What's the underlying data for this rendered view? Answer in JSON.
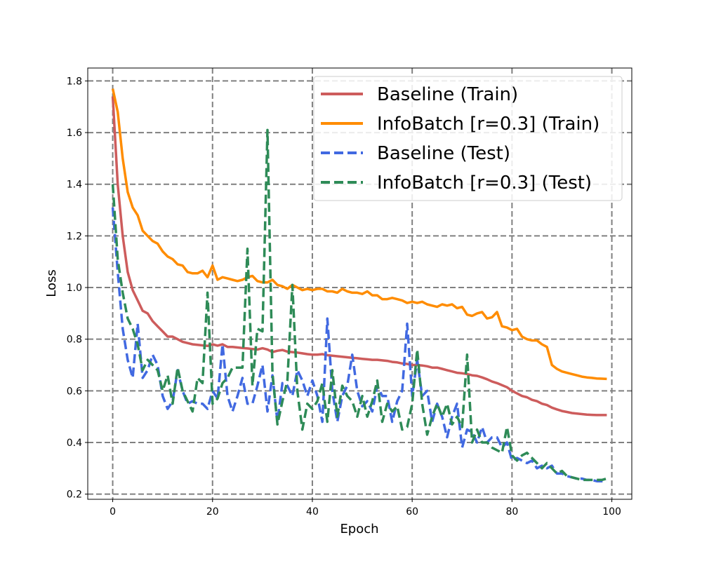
{
  "chart_data": {
    "type": "line",
    "title": "",
    "xlabel": "Epoch",
    "ylabel": "Loss",
    "xlim": [
      -5,
      104
    ],
    "ylim": [
      0.18,
      1.85
    ],
    "xticks": [
      0,
      20,
      40,
      60,
      80,
      100
    ],
    "yticks": [
      0.2,
      0.4,
      0.6,
      0.8,
      1.0,
      1.2,
      1.4,
      1.6,
      1.8
    ],
    "grid": true,
    "legend_position": "top-right",
    "series": [
      {
        "name": "Baseline (Train)",
        "color": "#cd5c5c",
        "style": "solid",
        "x": [
          0,
          1,
          2,
          3,
          4,
          5,
          6,
          7,
          8,
          9,
          10,
          11,
          12,
          13,
          14,
          15,
          16,
          17,
          18,
          19,
          20,
          21,
          22,
          23,
          24,
          25,
          26,
          27,
          28,
          29,
          30,
          31,
          32,
          33,
          34,
          35,
          36,
          37,
          38,
          39,
          40,
          41,
          42,
          43,
          44,
          45,
          46,
          47,
          48,
          49,
          50,
          51,
          52,
          53,
          54,
          55,
          56,
          57,
          58,
          59,
          60,
          61,
          62,
          63,
          64,
          65,
          66,
          67,
          68,
          69,
          70,
          71,
          72,
          73,
          74,
          75,
          76,
          77,
          78,
          79,
          80,
          81,
          82,
          83,
          84,
          85,
          86,
          87,
          88,
          89,
          90,
          91,
          92,
          93,
          94,
          95,
          96,
          97,
          98,
          99
        ],
        "values": [
          1.74,
          1.4,
          1.2,
          1.06,
          0.99,
          0.95,
          0.91,
          0.9,
          0.87,
          0.85,
          0.83,
          0.81,
          0.81,
          0.8,
          0.79,
          0.785,
          0.78,
          0.778,
          0.776,
          0.774,
          0.78,
          0.775,
          0.78,
          0.77,
          0.77,
          0.768,
          0.766,
          0.764,
          0.762,
          0.76,
          0.765,
          0.76,
          0.75,
          0.755,
          0.758,
          0.752,
          0.75,
          0.748,
          0.745,
          0.742,
          0.74,
          0.74,
          0.742,
          0.738,
          0.736,
          0.734,
          0.732,
          0.73,
          0.728,
          0.726,
          0.724,
          0.722,
          0.72,
          0.72,
          0.718,
          0.716,
          0.712,
          0.71,
          0.706,
          0.704,
          0.7,
          0.7,
          0.698,
          0.695,
          0.69,
          0.69,
          0.685,
          0.68,
          0.675,
          0.67,
          0.668,
          0.665,
          0.66,
          0.658,
          0.652,
          0.645,
          0.636,
          0.63,
          0.622,
          0.614,
          0.6,
          0.59,
          0.58,
          0.575,
          0.565,
          0.56,
          0.55,
          0.545,
          0.535,
          0.528,
          0.522,
          0.518,
          0.514,
          0.512,
          0.51,
          0.508,
          0.507,
          0.506,
          0.506,
          0.506
        ]
      },
      {
        "name": "InfoBatch [r=0.3] (Train)",
        "color": "#ff8c00",
        "style": "solid",
        "x": [
          0,
          1,
          2,
          3,
          4,
          5,
          6,
          7,
          8,
          9,
          10,
          11,
          12,
          13,
          14,
          15,
          16,
          17,
          18,
          19,
          20,
          21,
          22,
          23,
          24,
          25,
          26,
          27,
          28,
          29,
          30,
          31,
          32,
          33,
          34,
          35,
          36,
          37,
          38,
          39,
          40,
          41,
          42,
          43,
          44,
          45,
          46,
          47,
          48,
          49,
          50,
          51,
          52,
          53,
          54,
          55,
          56,
          57,
          58,
          59,
          60,
          61,
          62,
          63,
          64,
          65,
          66,
          67,
          68,
          69,
          70,
          71,
          72,
          73,
          74,
          75,
          76,
          77,
          78,
          79,
          80,
          81,
          82,
          83,
          84,
          85,
          86,
          87,
          88,
          89,
          90,
          91,
          92,
          93,
          94,
          95,
          96,
          97,
          98,
          99
        ],
        "values": [
          1.77,
          1.68,
          1.5,
          1.37,
          1.31,
          1.28,
          1.22,
          1.2,
          1.18,
          1.17,
          1.14,
          1.12,
          1.11,
          1.09,
          1.085,
          1.06,
          1.055,
          1.055,
          1.065,
          1.04,
          1.085,
          1.03,
          1.04,
          1.035,
          1.03,
          1.025,
          1.03,
          1.04,
          1.045,
          1.025,
          1.02,
          1.02,
          1.03,
          1.01,
          1.005,
          0.995,
          1.01,
          1.0,
          0.99,
          0.995,
          0.99,
          0.995,
          0.995,
          0.985,
          0.985,
          0.98,
          0.995,
          0.985,
          0.98,
          0.98,
          0.975,
          0.985,
          0.97,
          0.97,
          0.955,
          0.955,
          0.96,
          0.955,
          0.95,
          0.94,
          0.945,
          0.94,
          0.945,
          0.935,
          0.93,
          0.925,
          0.935,
          0.93,
          0.935,
          0.92,
          0.925,
          0.895,
          0.89,
          0.9,
          0.905,
          0.88,
          0.885,
          0.905,
          0.85,
          0.845,
          0.835,
          0.84,
          0.81,
          0.8,
          0.795,
          0.795,
          0.78,
          0.77,
          0.7,
          0.685,
          0.675,
          0.67,
          0.665,
          0.66,
          0.655,
          0.652,
          0.65,
          0.648,
          0.647,
          0.646
        ]
      },
      {
        "name": "Baseline (Test)",
        "color": "#4169e1",
        "style": "dashed",
        "x": [
          0,
          1,
          2,
          3,
          4,
          5,
          6,
          7,
          8,
          9,
          10,
          11,
          12,
          13,
          14,
          15,
          16,
          17,
          18,
          19,
          20,
          21,
          22,
          23,
          24,
          25,
          26,
          27,
          28,
          29,
          30,
          31,
          32,
          33,
          34,
          35,
          36,
          37,
          38,
          39,
          40,
          41,
          42,
          43,
          44,
          45,
          46,
          47,
          48,
          49,
          50,
          51,
          52,
          53,
          54,
          55,
          56,
          57,
          58,
          59,
          60,
          61,
          62,
          63,
          64,
          65,
          66,
          67,
          68,
          69,
          70,
          71,
          72,
          73,
          74,
          75,
          76,
          77,
          78,
          79,
          80,
          81,
          82,
          83,
          84,
          85,
          86,
          87,
          88,
          89,
          90,
          91,
          92,
          93,
          94,
          95,
          96,
          97,
          98,
          99
        ],
        "values": [
          1.31,
          1.06,
          0.84,
          0.72,
          0.65,
          0.86,
          0.65,
          0.68,
          0.74,
          0.7,
          0.58,
          0.53,
          0.56,
          0.68,
          0.6,
          0.55,
          0.56,
          0.55,
          0.55,
          0.53,
          0.6,
          0.57,
          0.78,
          0.58,
          0.52,
          0.58,
          0.65,
          0.55,
          0.55,
          0.62,
          0.7,
          0.52,
          0.66,
          0.48,
          0.63,
          0.62,
          0.58,
          0.68,
          0.64,
          0.58,
          0.64,
          0.58,
          0.48,
          0.88,
          0.6,
          0.48,
          0.58,
          0.62,
          0.74,
          0.6,
          0.54,
          0.56,
          0.52,
          0.62,
          0.58,
          0.58,
          0.48,
          0.56,
          0.6,
          0.86,
          0.58,
          0.72,
          0.58,
          0.6,
          0.48,
          0.55,
          0.5,
          0.42,
          0.5,
          0.55,
          0.38,
          0.45,
          0.44,
          0.4,
          0.46,
          0.4,
          0.42,
          0.42,
          0.38,
          0.4,
          0.33,
          0.34,
          0.33,
          0.32,
          0.33,
          0.3,
          0.31,
          0.3,
          0.31,
          0.28,
          0.28,
          0.27,
          0.265,
          0.26,
          0.26,
          0.255,
          0.255,
          0.25,
          0.25,
          0.25
        ]
      },
      {
        "name": "InfoBatch [r=0.3] (Test)",
        "color": "#2e8b57",
        "style": "dashed",
        "x": [
          0,
          1,
          2,
          3,
          4,
          5,
          6,
          7,
          8,
          9,
          10,
          11,
          12,
          13,
          14,
          15,
          16,
          17,
          18,
          19,
          20,
          21,
          22,
          23,
          24,
          25,
          26,
          27,
          28,
          29,
          30,
          31,
          32,
          33,
          34,
          35,
          36,
          37,
          38,
          39,
          40,
          41,
          42,
          43,
          44,
          45,
          46,
          47,
          48,
          49,
          50,
          51,
          52,
          53,
          54,
          55,
          56,
          57,
          58,
          59,
          60,
          61,
          62,
          63,
          64,
          65,
          66,
          67,
          68,
          69,
          70,
          71,
          72,
          73,
          74,
          75,
          76,
          77,
          78,
          79,
          80,
          81,
          82,
          83,
          84,
          85,
          86,
          87,
          88,
          89,
          90,
          91,
          92,
          93,
          94,
          95,
          96,
          97,
          98,
          99
        ],
        "values": [
          1.4,
          1.11,
          0.98,
          0.88,
          0.84,
          0.78,
          0.68,
          0.72,
          0.7,
          0.68,
          0.6,
          0.66,
          0.55,
          0.69,
          0.6,
          0.56,
          0.52,
          0.65,
          0.63,
          0.98,
          0.55,
          0.57,
          0.63,
          0.65,
          0.69,
          0.69,
          0.69,
          1.15,
          0.62,
          0.84,
          0.83,
          1.61,
          0.67,
          0.47,
          0.56,
          0.64,
          1.01,
          0.6,
          0.45,
          0.55,
          0.53,
          0.56,
          0.63,
          0.48,
          0.68,
          0.5,
          0.62,
          0.58,
          0.56,
          0.5,
          0.58,
          0.5,
          0.56,
          0.64,
          0.48,
          0.55,
          0.52,
          0.54,
          0.45,
          0.46,
          0.55,
          0.76,
          0.55,
          0.43,
          0.5,
          0.55,
          0.5,
          0.55,
          0.47,
          0.5,
          0.46,
          0.74,
          0.4,
          0.45,
          0.4,
          0.4,
          0.38,
          0.37,
          0.36,
          0.46,
          0.35,
          0.33,
          0.35,
          0.36,
          0.34,
          0.32,
          0.3,
          0.32,
          0.3,
          0.28,
          0.29,
          0.27,
          0.265,
          0.26,
          0.255,
          0.255,
          0.255,
          0.255,
          0.255,
          0.26
        ]
      }
    ]
  }
}
